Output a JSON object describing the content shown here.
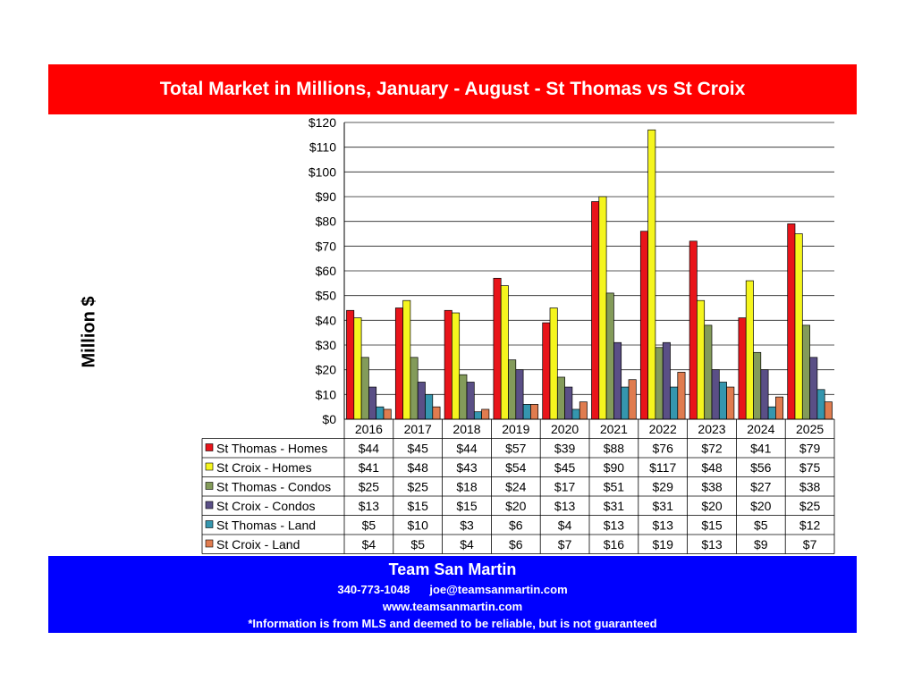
{
  "header": {
    "title": "Total Market in Millions,  January - August - St Thomas vs St Croix"
  },
  "colors": {
    "title_bg": "#ff0000",
    "footer_bg": "#0000ff",
    "series": [
      "#e8141a",
      "#f5f51e",
      "#839b5a",
      "#5a4f86",
      "#3596ae",
      "#e07c4f"
    ]
  },
  "chart_data": {
    "type": "bar",
    "ylabel": "Million $",
    "ylim": [
      0,
      120
    ],
    "yticks": [
      "$0",
      "$10",
      "$20",
      "$30",
      "$40",
      "$50",
      "$60",
      "$70",
      "$80",
      "$90",
      "$100",
      "$110",
      "$120"
    ],
    "grid": true,
    "legend": "data-table",
    "categories": [
      "2016",
      "2017",
      "2018",
      "2019",
      "2020",
      "2021",
      "2022",
      "2023",
      "2024",
      "2025"
    ],
    "series": [
      {
        "name": "St Thomas - Homes",
        "values": [
          44,
          45,
          44,
          57,
          39,
          88,
          76,
          72,
          41,
          79
        ],
        "labels": [
          "$44",
          "$45",
          "$44",
          "$57",
          "$39",
          "$88",
          "$76",
          "$72",
          "$41",
          "$79"
        ]
      },
      {
        "name": "St Croix - Homes",
        "values": [
          41,
          48,
          43,
          54,
          45,
          90,
          117,
          48,
          56,
          75
        ],
        "labels": [
          "$41",
          "$48",
          "$43",
          "$54",
          "$45",
          "$90",
          "$117",
          "$48",
          "$56",
          "$75"
        ]
      },
      {
        "name": "St Thomas - Condos",
        "values": [
          25,
          25,
          18,
          24,
          17,
          51,
          29,
          38,
          27,
          38
        ],
        "labels": [
          "$25",
          "$25",
          "$18",
          "$24",
          "$17",
          "$51",
          "$29",
          "$38",
          "$27",
          "$38"
        ]
      },
      {
        "name": "St Croix - Condos",
        "values": [
          13,
          15,
          15,
          20,
          13,
          31,
          31,
          20,
          20,
          25
        ],
        "labels": [
          "$13",
          "$15",
          "$15",
          "$20",
          "$13",
          "$31",
          "$31",
          "$20",
          "$20",
          "$25"
        ]
      },
      {
        "name": "St Thomas - Land",
        "values": [
          5,
          10,
          3,
          6,
          4,
          13,
          13,
          15,
          5,
          12
        ],
        "labels": [
          "$5",
          "$10",
          "$3",
          "$6",
          "$4",
          "$13",
          "$13",
          "$15",
          "$5",
          "$12"
        ]
      },
      {
        "name": "St Croix - Land",
        "values": [
          4,
          5,
          4,
          6,
          7,
          16,
          19,
          13,
          9,
          7
        ],
        "labels": [
          "$4",
          "$5",
          "$4",
          "$6",
          "$7",
          "$16",
          "$19",
          "$13",
          "$9",
          "$7"
        ]
      }
    ]
  },
  "footer": {
    "name": "Team San Martin",
    "phone": "340-773-1048",
    "email": "joe@teamsanmartin.com",
    "website": "www.teamsanmartin.com",
    "disclaimer": "*Information is from MLS and deemed to be reliable, but is not guaranteed"
  }
}
